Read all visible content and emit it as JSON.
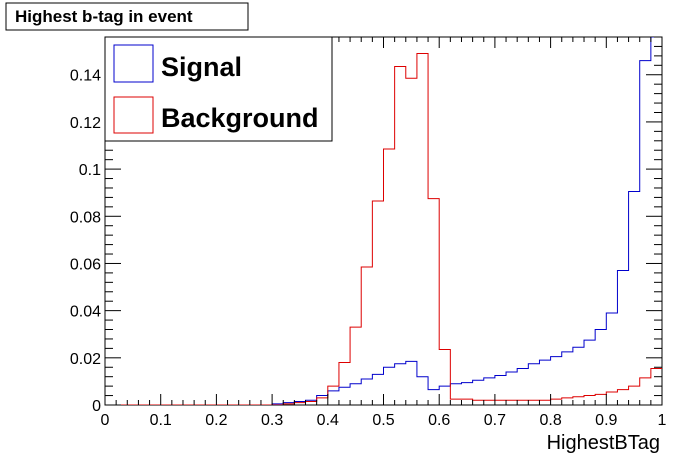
{
  "chart_data": {
    "type": "histogram",
    "title": "Highest b-tag in event",
    "xlabel": "HighestBTag",
    "ylabel": "",
    "xlim": [
      0,
      1
    ],
    "ylim": [
      0,
      0.156
    ],
    "bins": 50,
    "bin_width": 0.02,
    "x_ticks": [
      "0",
      "0.1",
      "0.2",
      "0.3",
      "0.4",
      "0.5",
      "0.6",
      "0.7",
      "0.8",
      "0.9",
      "1"
    ],
    "y_ticks": [
      "0",
      "0.02",
      "0.04",
      "0.06",
      "0.08",
      "0.1",
      "0.12",
      "0.14"
    ],
    "legend_position": "top-left",
    "grid": false,
    "series": [
      {
        "name": "Signal",
        "color": "#0000cc",
        "values": [
          0,
          0,
          0,
          0,
          0,
          0,
          0,
          0,
          0,
          0,
          0,
          0,
          0,
          0,
          0,
          0.0005,
          0.001,
          0.0015,
          0.002,
          0.004,
          0.006,
          0.0075,
          0.009,
          0.011,
          0.013,
          0.016,
          0.0175,
          0.0185,
          0.012,
          0.0065,
          0.008,
          0.009,
          0.0095,
          0.0105,
          0.0115,
          0.0125,
          0.014,
          0.0155,
          0.0175,
          0.019,
          0.0205,
          0.0225,
          0.0245,
          0.0275,
          0.032,
          0.039,
          0.057,
          0.0905,
          0.146,
          0.16
        ]
      },
      {
        "name": "Background",
        "color": "#dd0000",
        "values": [
          0,
          0,
          0,
          0,
          0,
          0,
          0,
          0,
          0,
          0,
          0,
          0,
          0,
          0,
          0,
          0,
          0.0005,
          0.001,
          0.0015,
          0.003,
          0.008,
          0.018,
          0.033,
          0.0585,
          0.0865,
          0.1085,
          0.1435,
          0.1385,
          0.149,
          0.0875,
          0.0235,
          0.0025,
          0.0025,
          0.002,
          0.002,
          0.002,
          0.002,
          0.002,
          0.002,
          0.002,
          0.0025,
          0.003,
          0.0035,
          0.004,
          0.0045,
          0.0055,
          0.0065,
          0.008,
          0.0115,
          0.0155
        ]
      }
    ]
  }
}
